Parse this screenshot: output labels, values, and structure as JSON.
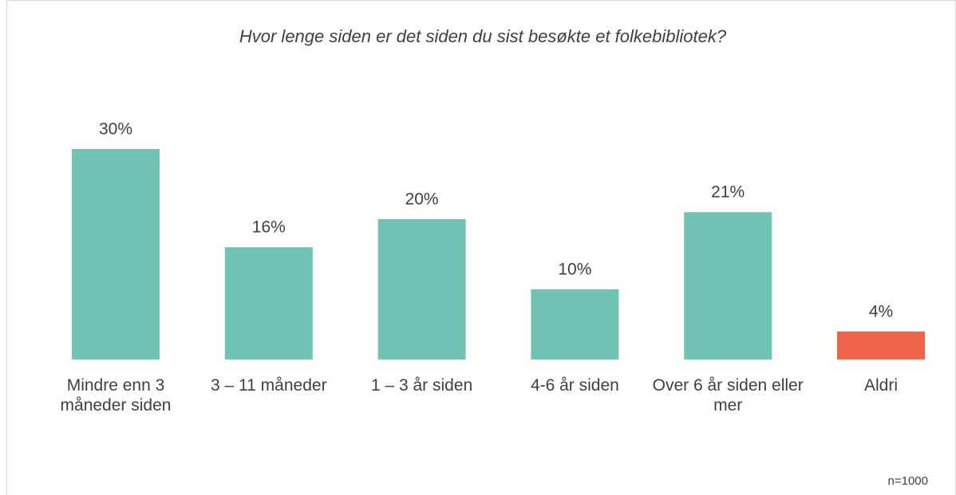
{
  "chart_data": {
    "type": "bar",
    "title": "Hvor lenge siden er det siden du sist besøkte et folkebibliotek?",
    "categories": [
      "Mindre enn 3 måneder siden",
      "3 – 11 måneder",
      "1 – 3 år siden",
      "4-6 år siden",
      "Over 6 år siden eller mer",
      "Aldri"
    ],
    "values": [
      30,
      16,
      20,
      10,
      21,
      4
    ],
    "value_labels": [
      "30%",
      "16%",
      "20%",
      "10%",
      "21%",
      "4%"
    ],
    "colors": [
      "#71c3b4",
      "#71c3b4",
      "#71c3b4",
      "#71c3b4",
      "#71c3b4",
      "#f0654a"
    ],
    "note": "n=1000"
  }
}
